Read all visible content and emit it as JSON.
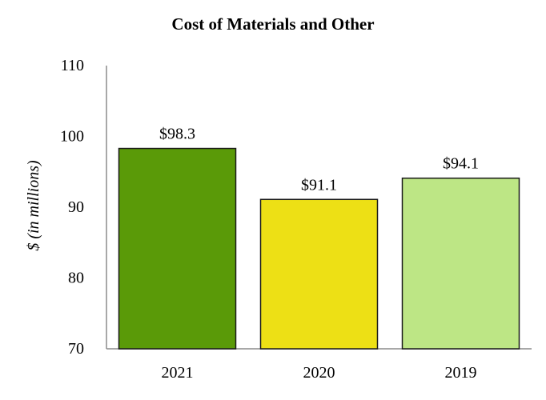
{
  "chart_data": {
    "type": "bar",
    "title": "Cost of Materials and Other",
    "ylabel": "$ (in millions)",
    "xlabel": "",
    "categories": [
      "2021",
      "2020",
      "2019"
    ],
    "values": [
      98.3,
      91.1,
      94.1
    ],
    "data_labels": [
      "$98.3",
      "$91.1",
      "$94.1"
    ],
    "bar_colors": [
      "#5a9a08",
      "#ede015",
      "#bde685"
    ],
    "ylim": [
      70,
      110
    ],
    "yticks": [
      70,
      80,
      90,
      100,
      110
    ],
    "grid": false,
    "legend": "none"
  }
}
